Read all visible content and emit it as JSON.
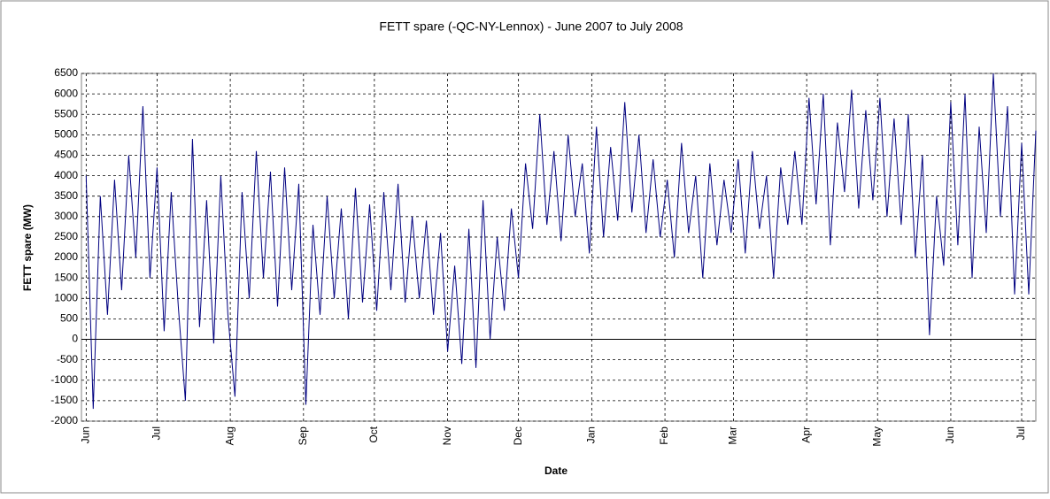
{
  "chart_data": {
    "type": "line",
    "title": "FETT spare (-QC-NY-Lennox) - June 2007 to July 2008",
    "x_label": "Date",
    "y_label": "FETT spare (MW)",
    "grid": true,
    "xlim": [
      -2,
      402
    ],
    "ylim": [
      -2000,
      6500
    ],
    "xticks": [
      {
        "value": 0,
        "label": "Jun"
      },
      {
        "value": 30,
        "label": "Jul"
      },
      {
        "value": 61,
        "label": "Aug"
      },
      {
        "value": 92,
        "label": "Sep"
      },
      {
        "value": 122,
        "label": "Oct"
      },
      {
        "value": 153,
        "label": "Nov"
      },
      {
        "value": 183,
        "label": "Dec"
      },
      {
        "value": 214,
        "label": "Jan"
      },
      {
        "value": 245,
        "label": "Feb"
      },
      {
        "value": 274,
        "label": "Mar"
      },
      {
        "value": 305,
        "label": "Apr"
      },
      {
        "value": 335,
        "label": "May"
      },
      {
        "value": 366,
        "label": "Jun"
      },
      {
        "value": 396,
        "label": "Jul"
      }
    ],
    "yticks": [
      -2000,
      -1500,
      -1000,
      -500,
      0,
      500,
      1000,
      1500,
      2000,
      2500,
      3000,
      3500,
      4000,
      4500,
      5000,
      5500,
      6000,
      6500
    ],
    "x": [
      0,
      3,
      6,
      9,
      12,
      15,
      18,
      21,
      24,
      27,
      30,
      33,
      36,
      39,
      42,
      45,
      48,
      51,
      54,
      57,
      60,
      63,
      66,
      69,
      72,
      75,
      78,
      81,
      84,
      87,
      90,
      93,
      96,
      99,
      102,
      105,
      108,
      111,
      114,
      117,
      120,
      123,
      126,
      129,
      132,
      135,
      138,
      141,
      144,
      147,
      150,
      153,
      156,
      159,
      162,
      165,
      168,
      171,
      174,
      177,
      180,
      183,
      186,
      189,
      192,
      195,
      198,
      201,
      204,
      207,
      210,
      213,
      216,
      219,
      222,
      225,
      228,
      231,
      234,
      237,
      240,
      243,
      246,
      249,
      252,
      255,
      258,
      261,
      264,
      267,
      270,
      273,
      276,
      279,
      282,
      285,
      288,
      291,
      294,
      297,
      300,
      303,
      306,
      309,
      312,
      315,
      318,
      321,
      324,
      327,
      330,
      333,
      336,
      339,
      342,
      345,
      348,
      351,
      354,
      357,
      360,
      363,
      366,
      369,
      372,
      375,
      378,
      381,
      384,
      387,
      390,
      393,
      396,
      399,
      402
    ],
    "series": [
      {
        "name": "FETT spare",
        "color": "#000080",
        "values": [
          4000,
          -1700,
          3500,
          600,
          3900,
          1200,
          4500,
          2000,
          5700,
          1500,
          4200,
          200,
          3600,
          800,
          -1500,
          4900,
          300,
          3400,
          -100,
          4000,
          600,
          -1400,
          3600,
          1000,
          4600,
          1500,
          4100,
          800,
          4200,
          1200,
          3800,
          -1600,
          2800,
          600,
          3500,
          1000,
          3200,
          500,
          3700,
          900,
          3300,
          700,
          3600,
          1200,
          3800,
          900,
          3000,
          1000,
          2900,
          600,
          2600,
          -300,
          1800,
          -600,
          2700,
          -700,
          3400,
          0,
          2500,
          700,
          3200,
          1500,
          4300,
          2700,
          5500,
          2800,
          4600,
          2400,
          5000,
          3000,
          4300,
          2100,
          5200,
          2500,
          4700,
          2900,
          5800,
          3100,
          5000,
          2600,
          4400,
          2500,
          3900,
          2000,
          4800,
          2600,
          4000,
          1500,
          4300,
          2300,
          3900,
          2600,
          4400,
          2100,
          4600,
          2700,
          4000,
          1500,
          4200,
          2800,
          4600,
          2800,
          5900,
          3300,
          6000,
          2300,
          5300,
          3600,
          6100,
          3200,
          5600,
          3400,
          5900,
          3000,
          5400,
          2800,
          5500,
          2000,
          4500,
          100,
          3500,
          1800,
          5800,
          2300,
          6000,
          1500,
          5200,
          2600,
          6500,
          3000,
          5700,
          1100,
          4800,
          1100,
          5100
        ]
      }
    ]
  }
}
